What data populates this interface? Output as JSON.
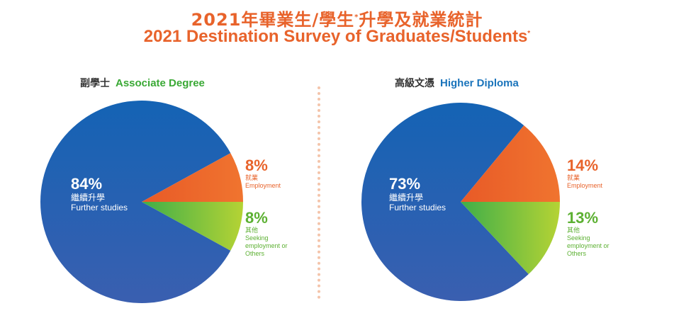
{
  "title": {
    "zh_main": "2021年畢業生/學生",
    "zh_sup": "*",
    "zh_rest": "升學及就業統計",
    "en_main": "2021 Destination Survey of Graduates/Students",
    "en_sup": "*"
  },
  "chart_data": [
    {
      "type": "pie",
      "heading_zh": "副學士",
      "heading_en": "Associate Degree",
      "slices": [
        {
          "value": 84,
          "label_pct": "84%",
          "label_zh": "繼續升學",
          "label_en": "Further studies",
          "color": "#1e5fb0"
        },
        {
          "value": 8,
          "label_pct": "8%",
          "label_zh": "就業",
          "label_en": "Employment",
          "color": "#e8632b"
        },
        {
          "value": 8,
          "label_pct": "8%",
          "label_zh": "其他",
          "label_en_lines": [
            "Seeking",
            "employment or",
            "Others"
          ],
          "color": "#8cc63f"
        }
      ]
    },
    {
      "type": "pie",
      "heading_zh": "高級文憑",
      "heading_en": "Higher Diploma",
      "slices": [
        {
          "value": 73,
          "label_pct": "73%",
          "label_zh": "繼續升學",
          "label_en": "Further studies",
          "color": "#1e5fb0"
        },
        {
          "value": 14,
          "label_pct": "14%",
          "label_zh": "就業",
          "label_en": "Employment",
          "color": "#e8632b"
        },
        {
          "value": 13,
          "label_pct": "13%",
          "label_zh": "其他",
          "label_en_lines": [
            "Seeking",
            "employment or",
            "Others"
          ],
          "color": "#8cc63f"
        }
      ]
    }
  ]
}
